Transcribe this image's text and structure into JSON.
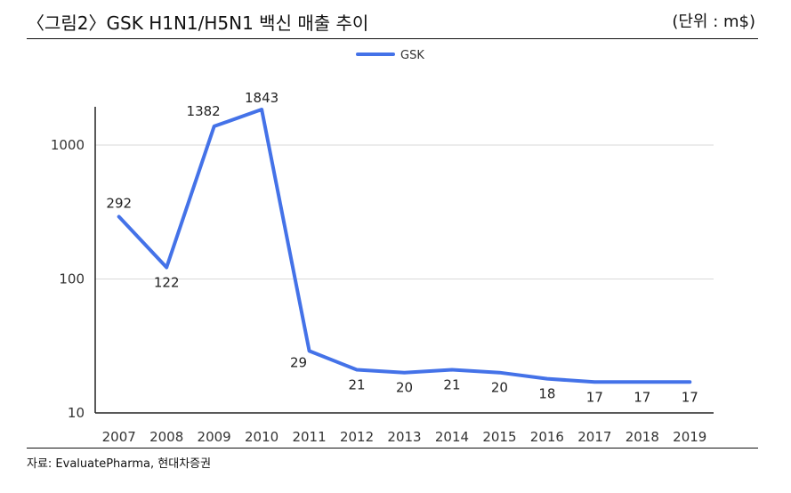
{
  "header": {
    "title": "〈그림2〉GSK H1N1/H5N1 백신 매출 추이",
    "unit": "(단위 : m$)"
  },
  "footer": {
    "source": "자료: EvaluatePharma, 현대차증권"
  },
  "chart_data": {
    "type": "line",
    "title": "",
    "xlabel": "",
    "ylabel": "",
    "yscale": "log",
    "ylim": [
      10,
      2000
    ],
    "yticks": [
      10,
      100,
      1000
    ],
    "grid": true,
    "legend": "top-center",
    "x": [
      "2007",
      "2008",
      "2009",
      "2010",
      "2011",
      "2012",
      "2013",
      "2014",
      "2015",
      "2016",
      "2017",
      "2018",
      "2019"
    ],
    "series": [
      {
        "name": "GSK",
        "color": "#4472E8",
        "values": [
          292,
          122,
          1382,
          1843,
          29,
          21,
          20,
          21,
          20,
          18,
          17,
          17,
          17
        ]
      }
    ]
  }
}
